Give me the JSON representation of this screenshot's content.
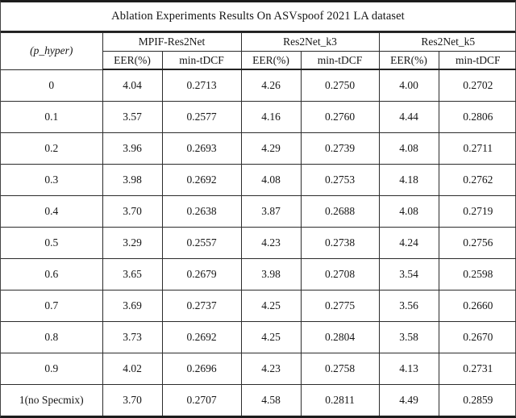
{
  "title": "Ablation Experiments Results On ASVspoof 2021 LA dataset",
  "table": {
    "row_header_label": "(p_hyper)",
    "groups": [
      {
        "label": "MPIF-Res2Net",
        "subheaders": [
          "EER(%)",
          "min-tDCF"
        ]
      },
      {
        "label": "Res2Net_k3",
        "subheaders": [
          "EER(%)",
          "min-tDCF"
        ]
      },
      {
        "label": "Res2Net_k5",
        "subheaders": [
          "EER(%)",
          "min-tDCF"
        ]
      }
    ],
    "rows": [
      {
        "p": "0",
        "values": [
          "4.04",
          "0.2713",
          "4.26",
          "0.2750",
          "4.00",
          "0.2702"
        ],
        "bold": []
      },
      {
        "p": "0.1",
        "values": [
          "3.57",
          "0.2577",
          "4.16",
          "0.2760",
          "4.44",
          "0.2806"
        ],
        "bold": []
      },
      {
        "p": "0.2",
        "values": [
          "3.96",
          "0.2693",
          "4.29",
          "0.2739",
          "4.08",
          "0.2711"
        ],
        "bold": []
      },
      {
        "p": "0.3",
        "values": [
          "3.98",
          "0.2692",
          "4.08",
          "0.2753",
          "4.18",
          "0.2762"
        ],
        "bold": []
      },
      {
        "p": "0.4",
        "values": [
          "3.70",
          "0.2638",
          "3.87",
          "0.2688",
          "4.08",
          "0.2719"
        ],
        "bold": []
      },
      {
        "p": "0.5",
        "values": [
          "3.29",
          "0.2557",
          "4.23",
          "0.2738",
          "4.24",
          "0.2756"
        ],
        "bold": [
          0,
          1
        ]
      },
      {
        "p": "0.6",
        "values": [
          "3.65",
          "0.2679",
          "3.98",
          "0.2708",
          "3.54",
          "0.2598"
        ],
        "bold": []
      },
      {
        "p": "0.7",
        "values": [
          "3.69",
          "0.2737",
          "4.25",
          "0.2775",
          "3.56",
          "0.2660"
        ],
        "bold": []
      },
      {
        "p": "0.8",
        "values": [
          "3.73",
          "0.2692",
          "4.25",
          "0.2804",
          "3.58",
          "0.2670"
        ],
        "bold": []
      },
      {
        "p": "0.9",
        "values": [
          "4.02",
          "0.2696",
          "4.23",
          "0.2758",
          "4.13",
          "0.2731"
        ],
        "bold": []
      },
      {
        "p": "1(no Specmix)",
        "values": [
          "3.70",
          "0.2707",
          "4.58",
          "0.2811",
          "4.49",
          "0.2859"
        ],
        "bold": []
      }
    ]
  },
  "colors": {
    "text": "#161616",
    "rule_thick": "#1c1c1c",
    "rule_thin": "#2c2c2c",
    "background": "#ffffff"
  }
}
